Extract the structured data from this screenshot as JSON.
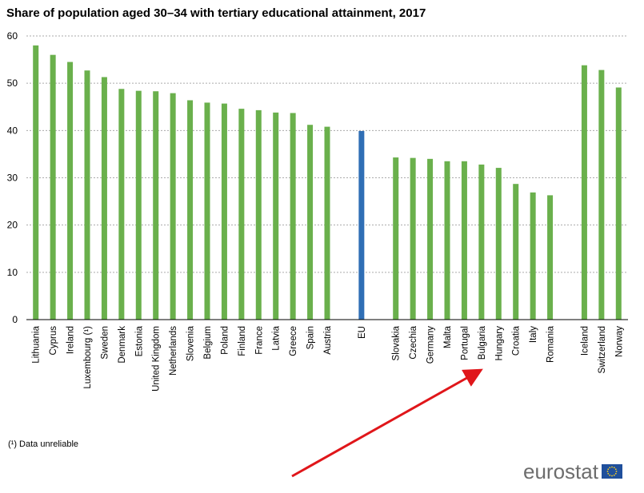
{
  "title": "Share of population aged 30–34 with tertiary educational attainment, 2017",
  "footnote": "(¹) Data unreliable",
  "logo": {
    "text": "eurostat"
  },
  "colors": {
    "bar": "#6ab04c",
    "eu_bar": "#2f6eb5",
    "grid": "#aaaaaa",
    "arrow": "#e0161a"
  },
  "chart_data": {
    "type": "bar",
    "title": "Share of population aged 30–34 with tertiary educational attainment, 2017",
    "xlabel": "",
    "ylabel": "",
    "ylim": [
      0,
      60
    ],
    "yticks": [
      0,
      10,
      20,
      30,
      40,
      50,
      60
    ],
    "grid": true,
    "categories": [
      "Lithuania",
      "Cyprus",
      "Ireland",
      "Luxembourg (¹)",
      "Sweden",
      "Denmark",
      "Estonia",
      "United Kingdom",
      "Netherlands",
      "Slovenia",
      "Belgium",
      "Poland",
      "Finland",
      "France",
      "Latvia",
      "Greece",
      "Spain",
      "Austria",
      "EU",
      "Slovakia",
      "Czechia",
      "Germany",
      "Malta",
      "Portugal",
      "Bulgaria",
      "Hungary",
      "Croatia",
      "Italy",
      "Romania",
      "Iceland",
      "Switzerland",
      "Norway"
    ],
    "values": [
      58.0,
      56.0,
      54.5,
      52.7,
      51.3,
      48.8,
      48.4,
      48.3,
      47.9,
      46.4,
      45.9,
      45.7,
      44.6,
      44.3,
      43.8,
      43.7,
      41.2,
      40.8,
      39.9,
      34.3,
      34.2,
      34.0,
      33.5,
      33.5,
      32.8,
      32.1,
      28.7,
      26.9,
      26.3,
      53.8,
      52.8,
      49.1
    ],
    "groups": [
      18,
      1,
      10,
      3
    ],
    "highlight": "EU"
  }
}
